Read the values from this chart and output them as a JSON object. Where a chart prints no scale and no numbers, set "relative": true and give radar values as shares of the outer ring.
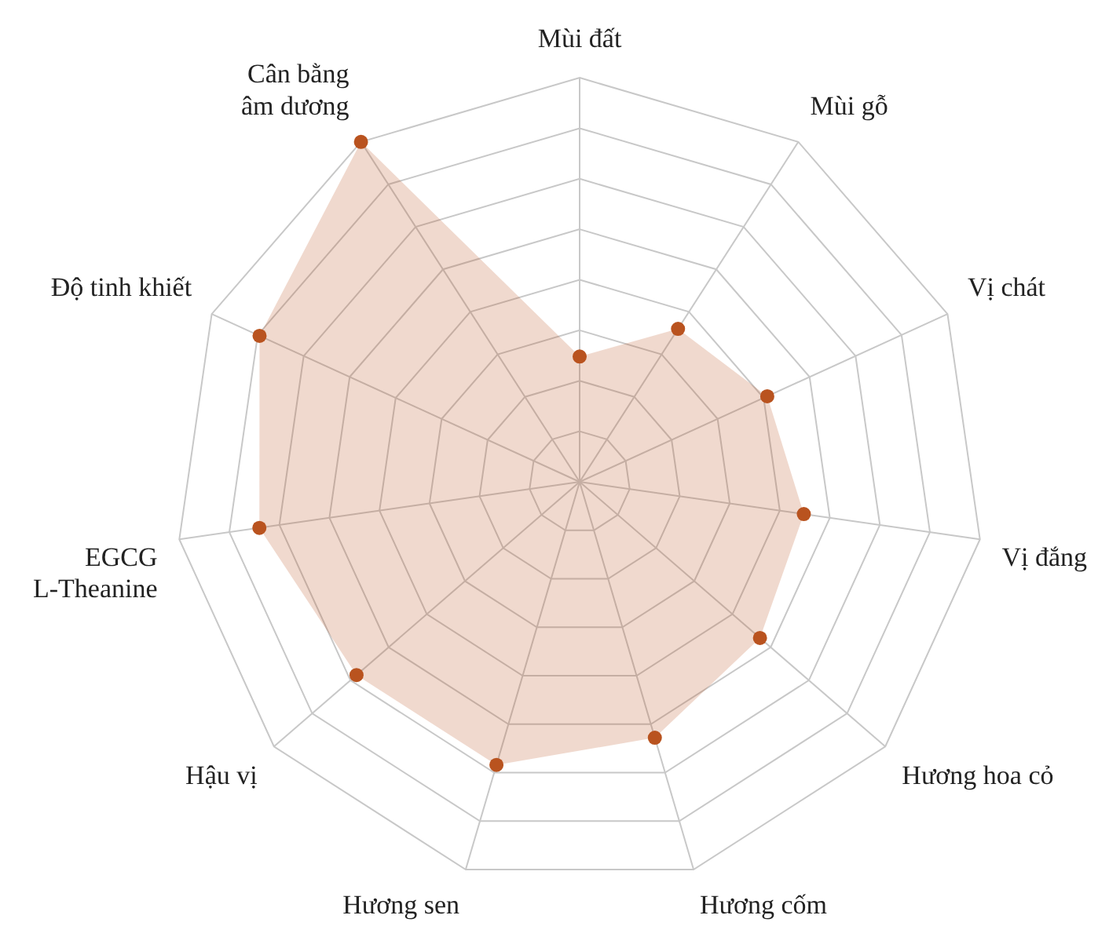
{
  "chart_data": {
    "type": "radar",
    "relative": true,
    "legend": false,
    "marker": "circle",
    "grid": true,
    "categories": [
      "Mùi đất",
      "Mùi gỗ",
      "Vị chát",
      "Vị đắng",
      "Hương hoa cỏ",
      "Hương cốm",
      "Hương sen",
      "Hậu vị",
      "EGCG\nL-Theanine",
      "Độ tinh khiết",
      "Cân bằng\nâm dương"
    ],
    "series": [
      {
        "color": "#b9531f",
        "values": [
          0.31,
          0.45,
          0.51,
          0.56,
          0.59,
          0.66,
          0.73,
          0.73,
          0.8,
          0.87,
          1.0
        ]
      }
    ]
  }
}
